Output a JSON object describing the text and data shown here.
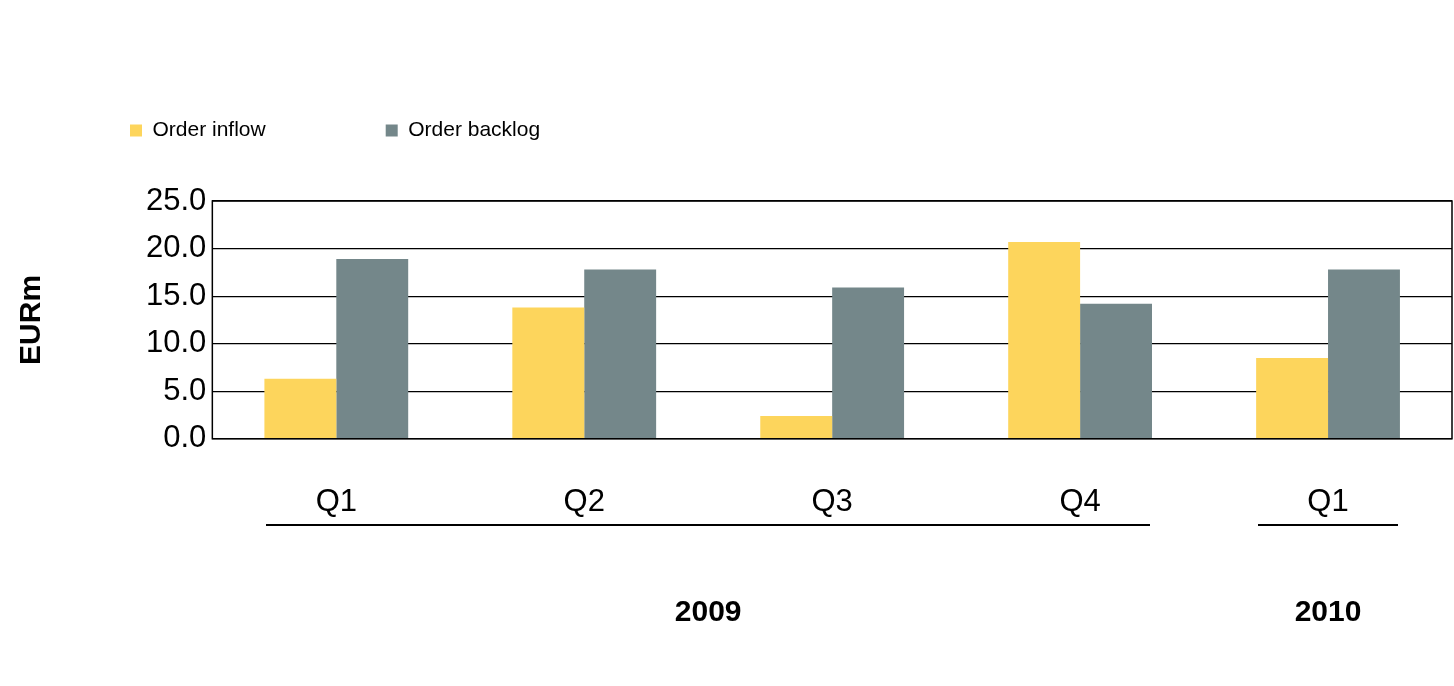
{
  "chart_data": {
    "type": "bar",
    "ylabel": "EURm",
    "categories": [
      "Q1",
      "Q2",
      "Q3",
      "Q4",
      "Q1"
    ],
    "series": [
      {
        "name": "Order inflow",
        "color": "#fdd55c",
        "values": [
          6.3,
          13.8,
          2.4,
          20.7,
          8.5
        ]
      },
      {
        "name": "Order backlog",
        "color": "#74878a",
        "values": [
          18.9,
          17.8,
          15.9,
          14.2,
          17.8
        ]
      }
    ],
    "ylim": [
      0,
      25
    ],
    "yticks": [
      {
        "value": 0,
        "label": "0.0"
      },
      {
        "value": 5,
        "label": "5.0"
      },
      {
        "value": 10,
        "label": "10.0"
      },
      {
        "value": 15,
        "label": "15.0"
      },
      {
        "value": 20,
        "label": "20.0"
      },
      {
        "value": 25,
        "label": "25.0"
      }
    ],
    "grid": "y",
    "legend": "top left",
    "annotations": [
      "2009",
      "2010"
    ]
  }
}
